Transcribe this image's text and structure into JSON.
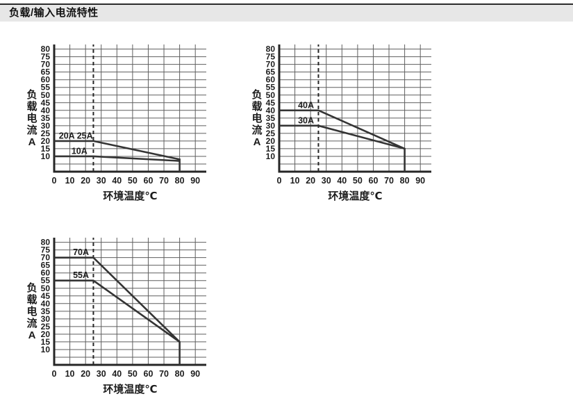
{
  "header": {
    "title": "负载/输入电流特性"
  },
  "colors": {
    "page_bg": "#ffffff",
    "header_bg": "#e7e7e7",
    "header_border": "#2b2b2b",
    "axis": "#262626",
    "grid": "#5e5e5e",
    "curve": "#343434",
    "dashed": "#262626",
    "text": "#1c1c1c"
  },
  "chart_data": [
    {
      "type": "line",
      "title": "",
      "xlabel": "环境温度℃",
      "ylabel": "负载电流A",
      "ylabel_stacked": [
        "负",
        "载",
        "电",
        "流",
        "A"
      ],
      "xlim": [
        0,
        97
      ],
      "ylim": [
        0,
        83
      ],
      "x_ticks": [
        0,
        10,
        20,
        30,
        40,
        50,
        60,
        70,
        80,
        90
      ],
      "y_ticks": [
        10,
        15,
        20,
        25,
        30,
        35,
        40,
        45,
        50,
        55,
        60,
        65,
        70,
        75,
        80
      ],
      "grid_x": [
        10,
        20,
        30,
        40,
        50,
        60,
        70,
        80,
        90
      ],
      "grid_y": [
        5,
        10,
        15,
        20,
        25,
        30,
        35,
        40,
        45,
        50,
        55,
        60,
        65,
        70,
        75,
        80
      ],
      "grid": true,
      "dashed_vline_x": 25,
      "legend_position": "inline-labels",
      "series": [
        {
          "name": "20A 25A",
          "points": [
            [
              0,
              20
            ],
            [
              25,
              20
            ],
            [
              80,
              8
            ],
            [
              80,
              0
            ]
          ],
          "label": {
            "text": "20A 25A",
            "at": [
              3,
              20
            ]
          }
        },
        {
          "name": "10A",
          "points": [
            [
              0,
              10
            ],
            [
              25,
              10
            ],
            [
              80,
              7
            ]
          ],
          "label": {
            "text": "10A",
            "at": [
              11,
              10
            ]
          }
        }
      ]
    },
    {
      "type": "line",
      "title": "",
      "xlabel": "环境温度℃",
      "ylabel": "负载电流A",
      "ylabel_stacked": [
        "负",
        "载",
        "电",
        "流",
        "A"
      ],
      "xlim": [
        0,
        97
      ],
      "ylim": [
        0,
        83
      ],
      "x_ticks": [
        0,
        10,
        20,
        30,
        40,
        50,
        60,
        70,
        80,
        90
      ],
      "y_ticks": [
        10,
        15,
        20,
        25,
        30,
        35,
        40,
        45,
        50,
        55,
        60,
        65,
        70,
        75,
        80
      ],
      "grid_x": [
        10,
        20,
        30,
        40,
        50,
        60,
        70,
        80,
        90
      ],
      "grid_y": [
        5,
        10,
        15,
        20,
        25,
        30,
        35,
        40,
        45,
        50,
        55,
        60,
        65,
        70,
        75,
        80
      ],
      "grid": true,
      "dashed_vline_x": 25,
      "legend_position": "inline-labels",
      "series": [
        {
          "name": "40A",
          "points": [
            [
              0,
              40
            ],
            [
              25,
              40
            ],
            [
              80,
              15
            ],
            [
              80,
              0
            ]
          ],
          "label": {
            "text": "40A",
            "at": [
              12,
              40
            ]
          }
        },
        {
          "name": "30A",
          "points": [
            [
              0,
              30
            ],
            [
              25,
              30
            ],
            [
              80,
              15
            ]
          ],
          "label": {
            "text": "30A",
            "at": [
              12,
              30
            ]
          }
        }
      ]
    },
    {
      "type": "line",
      "title": "",
      "xlabel": "环境温度℃",
      "ylabel": "负载电流A",
      "ylabel_stacked": [
        "负",
        "载",
        "电",
        "流",
        "A"
      ],
      "xlim": [
        0,
        97
      ],
      "ylim": [
        0,
        83
      ],
      "x_ticks": [
        0,
        10,
        20,
        30,
        40,
        50,
        60,
        70,
        80,
        90
      ],
      "y_ticks": [
        10,
        15,
        20,
        25,
        30,
        35,
        40,
        45,
        50,
        55,
        60,
        65,
        70,
        75,
        80
      ],
      "grid_x": [
        10,
        20,
        30,
        40,
        50,
        60,
        70,
        80,
        90
      ],
      "grid_y": [
        5,
        10,
        15,
        20,
        25,
        30,
        35,
        40,
        45,
        50,
        55,
        60,
        65,
        70,
        75,
        80
      ],
      "grid": true,
      "dashed_vline_x": 25,
      "legend_position": "inline-labels",
      "series": [
        {
          "name": "70A",
          "points": [
            [
              0,
              70
            ],
            [
              25,
              70
            ],
            [
              80,
              15
            ],
            [
              80,
              0
            ]
          ],
          "label": {
            "text": "70A",
            "at": [
              12,
              70
            ]
          }
        },
        {
          "name": "55A",
          "points": [
            [
              0,
              55
            ],
            [
              25,
              55
            ],
            [
              80,
              15
            ]
          ],
          "label": {
            "text": "55A",
            "at": [
              12,
              55
            ]
          }
        }
      ]
    }
  ]
}
